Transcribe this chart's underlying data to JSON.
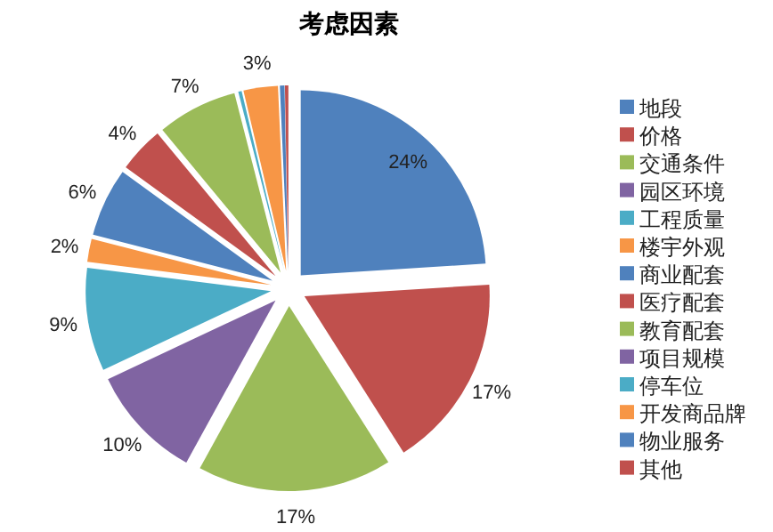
{
  "chart_data": {
    "type": "pie",
    "title": "考虑因素",
    "categories": [
      "地段",
      "价格",
      "交通条件",
      "园区环境",
      "工程质量",
      "楼宇外观",
      "商业配套",
      "医疗配套",
      "教育配套",
      "项目规模",
      "停车位",
      "开发商品牌",
      "物业服务",
      "其他"
    ],
    "values": [
      24,
      17,
      17,
      10,
      9,
      2,
      6,
      4,
      7,
      0,
      0.3,
      3,
      0.4,
      0.3
    ],
    "value_labels": [
      "24%",
      "17%",
      "17%",
      "10%",
      "9%",
      "2%",
      "6%",
      "4%",
      "7%",
      null,
      null,
      "3%",
      null,
      null
    ],
    "colors": [
      "#4f81bd",
      "#c0504d",
      "#9bbb59",
      "#8064a2",
      "#4bacc6",
      "#f79646",
      "#4f81bd",
      "#c0504d",
      "#9bbb59",
      "#8064a2",
      "#4bacc6",
      "#f79646",
      "#4f81bd",
      "#c0504d"
    ],
    "legend": "right"
  }
}
